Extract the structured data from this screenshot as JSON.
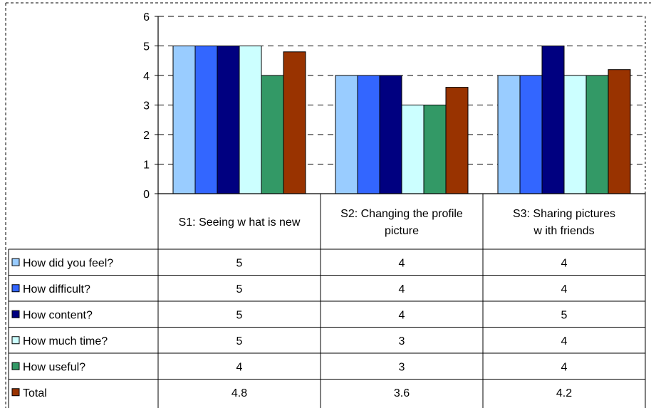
{
  "chart_data": {
    "type": "bar",
    "title": "",
    "xlabel": "",
    "ylabel": "",
    "ylim": [
      0,
      6
    ],
    "y_ticks": [
      "0",
      "1",
      "2",
      "3",
      "4",
      "5",
      "6"
    ],
    "grid": "dashed horizontal",
    "legend": "data table below chart",
    "categories": [
      [
        "S1: Seeing w hat is new"
      ],
      [
        "S2: Changing the profile",
        "picture"
      ],
      [
        "S3: Sharing pictures",
        "w ith friends"
      ]
    ],
    "series": [
      {
        "name": "How did you feel?",
        "values": [
          5,
          4,
          4
        ],
        "labels": [
          "5",
          "4",
          "4"
        ],
        "color": "#99ccff"
      },
      {
        "name": "How difficult?",
        "values": [
          5,
          4,
          4
        ],
        "labels": [
          "5",
          "4",
          "4"
        ],
        "color": "#3366ff"
      },
      {
        "name": "How content?",
        "values": [
          5,
          4,
          5
        ],
        "labels": [
          "5",
          "4",
          "5"
        ],
        "color": "#000080"
      },
      {
        "name": "How much time?",
        "values": [
          5,
          3,
          4
        ],
        "labels": [
          "5",
          "3",
          "4"
        ],
        "color": "#ccffff"
      },
      {
        "name": "How useful?",
        "values": [
          4,
          3,
          4
        ],
        "labels": [
          "4",
          "3",
          "4"
        ],
        "color": "#339966"
      },
      {
        "name": "Total",
        "values": [
          4.8,
          3.6,
          4.2
        ],
        "labels": [
          "4.8",
          "3.6",
          "4.2"
        ],
        "color": "#993300"
      }
    ]
  }
}
